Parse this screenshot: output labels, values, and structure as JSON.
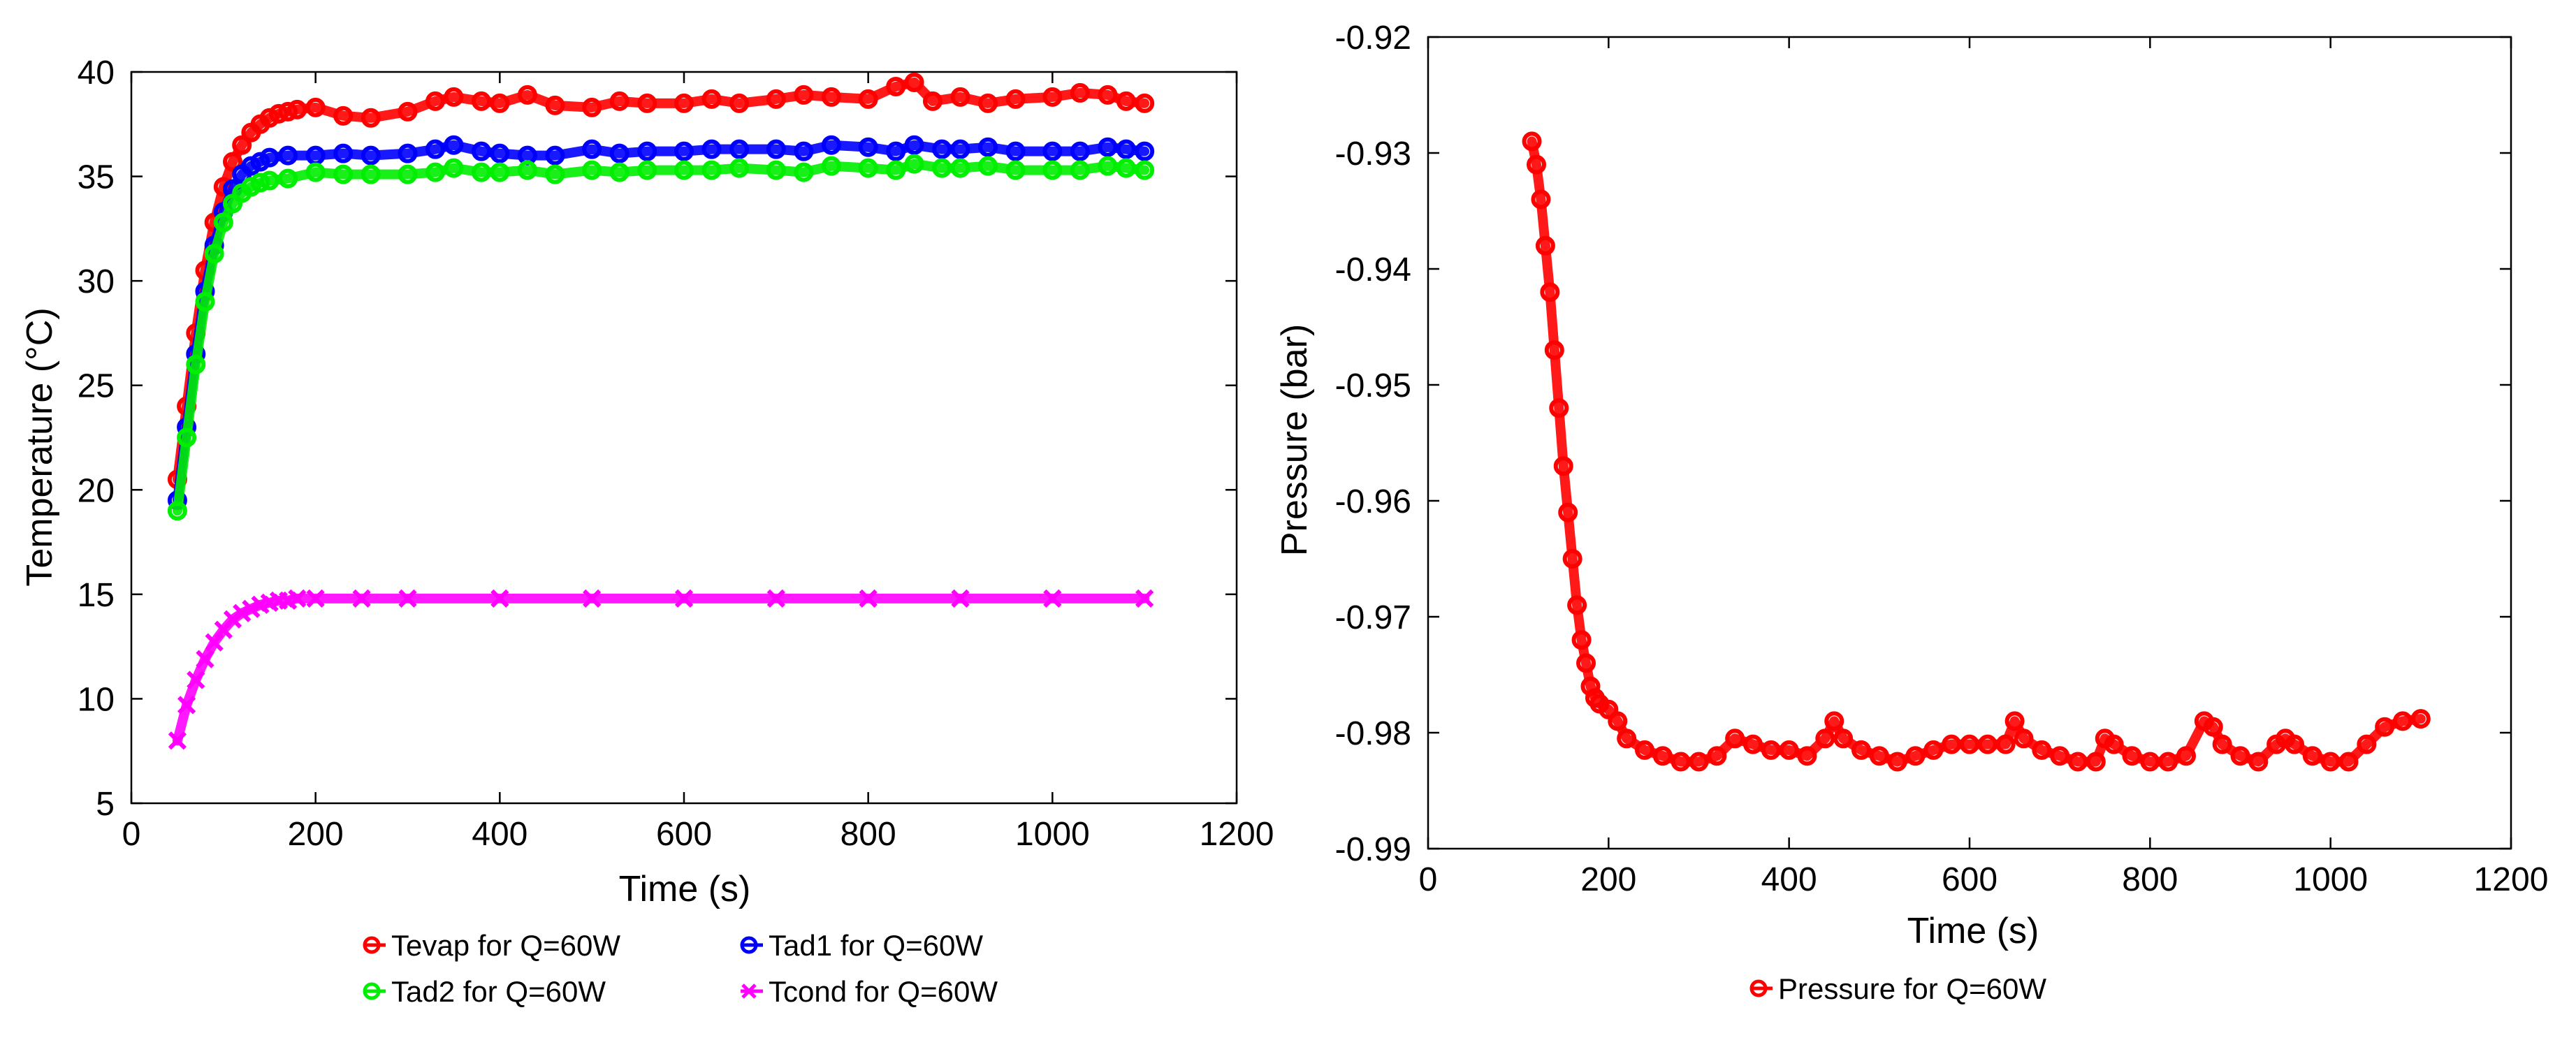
{
  "chart_data": [
    {
      "type": "scatter",
      "title": "",
      "xlabel": "Time (s)",
      "ylabel": "Temperature (°C)",
      "xlim": [
        0,
        1200
      ],
      "ylim": [
        5,
        40
      ],
      "xticks": [
        0,
        200,
        400,
        600,
        800,
        1000,
        1200
      ],
      "yticks": [
        5,
        10,
        15,
        20,
        25,
        30,
        35,
        40
      ],
      "legend_position": "bottom",
      "series": [
        {
          "name": "Tevap for Q=60W",
          "color": "#ff0000",
          "marker": "o",
          "x": [
            50,
            60,
            70,
            80,
            90,
            100,
            110,
            120,
            130,
            140,
            150,
            160,
            170,
            180,
            200,
            230,
            260,
            300,
            330,
            350,
            380,
            400,
            430,
            460,
            500,
            530,
            560,
            600,
            630,
            660,
            700,
            730,
            760,
            800,
            830,
            850,
            870,
            900,
            930,
            960,
            1000,
            1030,
            1060,
            1080,
            1100
          ],
          "y": [
            20.5,
            24,
            27.5,
            30.5,
            32.8,
            34.5,
            35.7,
            36.5,
            37.1,
            37.5,
            37.8,
            38,
            38.1,
            38.2,
            38.3,
            37.9,
            37.8,
            38.1,
            38.6,
            38.8,
            38.6,
            38.5,
            38.9,
            38.4,
            38.3,
            38.6,
            38.5,
            38.5,
            38.7,
            38.5,
            38.7,
            38.9,
            38.8,
            38.7,
            39.3,
            39.5,
            38.6,
            38.8,
            38.5,
            38.7,
            38.8,
            39,
            38.9,
            38.6,
            38.5
          ]
        },
        {
          "name": "Tad1 for Q=60W",
          "color": "#0000ff",
          "marker": "o",
          "x": [
            50,
            60,
            70,
            80,
            90,
            100,
            110,
            120,
            130,
            140,
            150,
            170,
            200,
            230,
            260,
            300,
            330,
            350,
            380,
            400,
            430,
            460,
            500,
            530,
            560,
            600,
            630,
            660,
            700,
            730,
            760,
            800,
            830,
            850,
            880,
            900,
            930,
            960,
            1000,
            1030,
            1060,
            1080,
            1100
          ],
          "y": [
            19.5,
            23,
            26.5,
            29.5,
            31.7,
            33.3,
            34.4,
            35.1,
            35.5,
            35.7,
            35.9,
            36,
            36,
            36.1,
            36,
            36.1,
            36.3,
            36.5,
            36.2,
            36.1,
            36,
            36,
            36.3,
            36.1,
            36.2,
            36.2,
            36.3,
            36.3,
            36.3,
            36.2,
            36.5,
            36.4,
            36.2,
            36.5,
            36.3,
            36.3,
            36.4,
            36.2,
            36.2,
            36.2,
            36.4,
            36.3,
            36.2
          ]
        },
        {
          "name": "Tad2 for Q=60W",
          "color": "#00ee00",
          "marker": "o",
          "x": [
            50,
            60,
            70,
            80,
            90,
            100,
            110,
            120,
            130,
            140,
            150,
            170,
            200,
            230,
            260,
            300,
            330,
            350,
            380,
            400,
            430,
            460,
            500,
            530,
            560,
            600,
            630,
            660,
            700,
            730,
            760,
            800,
            830,
            850,
            880,
            900,
            930,
            960,
            1000,
            1030,
            1060,
            1080,
            1100
          ],
          "y": [
            19,
            22.5,
            26,
            29,
            31.3,
            32.8,
            33.7,
            34.2,
            34.5,
            34.7,
            34.8,
            34.9,
            35.2,
            35.1,
            35.1,
            35.1,
            35.2,
            35.4,
            35.2,
            35.2,
            35.3,
            35.1,
            35.3,
            35.2,
            35.3,
            35.3,
            35.3,
            35.4,
            35.3,
            35.2,
            35.5,
            35.4,
            35.3,
            35.6,
            35.4,
            35.4,
            35.5,
            35.3,
            35.3,
            35.3,
            35.5,
            35.4,
            35.3
          ]
        },
        {
          "name": "Tcond for Q=60W",
          "color": "#ff00ff",
          "marker": "x",
          "x": [
            50,
            60,
            70,
            80,
            90,
            100,
            110,
            120,
            130,
            140,
            150,
            160,
            170,
            180,
            200,
            250,
            300,
            400,
            500,
            600,
            700,
            800,
            900,
            1000,
            1100
          ],
          "y": [
            8,
            9.7,
            10.9,
            11.9,
            12.7,
            13.3,
            13.8,
            14.1,
            14.3,
            14.5,
            14.6,
            14.7,
            14.7,
            14.8,
            14.8,
            14.8,
            14.8,
            14.8,
            14.8,
            14.8,
            14.8,
            14.8,
            14.8,
            14.8,
            14.8
          ]
        }
      ]
    },
    {
      "type": "scatter",
      "title": "",
      "xlabel": "Time (s)",
      "ylabel": "Pressure (bar)",
      "xlim": [
        0,
        1200
      ],
      "ylim": [
        -0.99,
        -0.92
      ],
      "xticks": [
        0,
        200,
        400,
        600,
        800,
        1000,
        1200
      ],
      "yticks": [
        -0.99,
        -0.98,
        -0.97,
        -0.96,
        -0.95,
        -0.94,
        -0.93,
        -0.92
      ],
      "legend_position": "bottom",
      "series": [
        {
          "name": "Pressure for Q=60W",
          "color": "#ff0000",
          "marker": "o",
          "x": [
            115,
            120,
            125,
            130,
            135,
            140,
            145,
            150,
            155,
            160,
            165,
            170,
            175,
            180,
            185,
            190,
            200,
            210,
            220,
            240,
            260,
            280,
            300,
            320,
            340,
            360,
            380,
            400,
            420,
            440,
            450,
            460,
            480,
            500,
            520,
            540,
            560,
            580,
            600,
            620,
            640,
            650,
            660,
            680,
            700,
            720,
            740,
            750,
            760,
            780,
            800,
            820,
            840,
            860,
            870,
            880,
            900,
            920,
            940,
            950,
            960,
            980,
            1000,
            1020,
            1040,
            1060,
            1080,
            1100
          ],
          "y": [
            -0.929,
            -0.931,
            -0.934,
            -0.938,
            -0.942,
            -0.947,
            -0.952,
            -0.957,
            -0.961,
            -0.965,
            -0.969,
            -0.972,
            -0.974,
            -0.976,
            -0.977,
            -0.9775,
            -0.978,
            -0.979,
            -0.9805,
            -0.9815,
            -0.982,
            -0.9825,
            -0.9825,
            -0.982,
            -0.9805,
            -0.981,
            -0.9815,
            -0.9815,
            -0.982,
            -0.9805,
            -0.979,
            -0.9805,
            -0.9815,
            -0.982,
            -0.9825,
            -0.982,
            -0.9815,
            -0.981,
            -0.981,
            -0.981,
            -0.981,
            -0.979,
            -0.9805,
            -0.9815,
            -0.982,
            -0.9825,
            -0.9825,
            -0.9805,
            -0.981,
            -0.982,
            -0.9825,
            -0.9825,
            -0.982,
            -0.979,
            -0.9795,
            -0.981,
            -0.982,
            -0.9825,
            -0.981,
            -0.9805,
            -0.981,
            -0.982,
            -0.9825,
            -0.9825,
            -0.981,
            -0.9795,
            -0.979,
            -0.9788
          ]
        }
      ]
    }
  ]
}
